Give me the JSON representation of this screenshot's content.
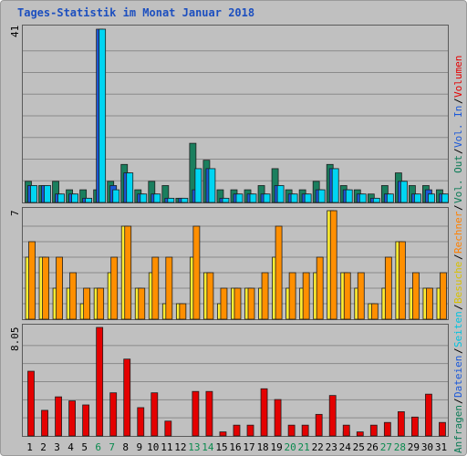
{
  "title": "Tages-Statistik im Monat Januar 2018",
  "colors": {
    "anfragen": "#1a7f5e",
    "dateien": "#1a58d8",
    "seiten": "#00d5f2",
    "besuche": "#ffed31",
    "rechner": "#ff8f00",
    "volumen": "#e40000",
    "weekend": "#0a8a4e",
    "weekday": "#000000",
    "title": "#1c4fbf"
  },
  "legend_right": [
    {
      "text": "Anfragen",
      "color": "#0a7a55"
    },
    {
      "text": "/",
      "color": "#000000"
    },
    {
      "text": "Dateien",
      "color": "#1a58d8"
    },
    {
      "text": "/",
      "color": "#000000"
    },
    {
      "text": "Seiten",
      "color": "#00c2e0"
    },
    {
      "text": "/",
      "color": "#000000"
    },
    {
      "text": "Besuche",
      "color": "#d9c000"
    },
    {
      "text": "/",
      "color": "#000000"
    },
    {
      "text": "Rechner",
      "color": "#ff8000"
    },
    {
      "text": "/",
      "color": "#000000"
    },
    {
      "text": "Vol. Out",
      "color": "#0a7a55"
    },
    {
      "text": "/",
      "color": "#000000"
    },
    {
      "text": "Vol. In",
      "color": "#1a58d8"
    },
    {
      "text": "/",
      "color": "#000000"
    },
    {
      "text": "Volumen",
      "color": "#e40000"
    }
  ],
  "chart_data": [
    {
      "type": "bar",
      "title": "Tages-Statistik im Monat Januar 2018",
      "categories": [
        "1",
        "2",
        "3",
        "4",
        "5",
        "6",
        "7",
        "8",
        "9",
        "10",
        "11",
        "12",
        "13",
        "14",
        "15",
        "16",
        "17",
        "18",
        "19",
        "20",
        "21",
        "22",
        "23",
        "24",
        "25",
        "26",
        "27",
        "28",
        "29",
        "30",
        "31"
      ],
      "weekend_days": [
        "6",
        "7",
        "13",
        "14",
        "20",
        "21",
        "27",
        "28"
      ],
      "ymax_label": "41",
      "ylim": [
        0,
        41
      ],
      "series": [
        {
          "name": "Anfragen",
          "values": [
            5,
            4,
            5,
            3,
            3,
            3,
            5,
            9,
            3,
            5,
            4,
            1,
            14,
            10,
            3,
            3,
            3,
            4,
            8,
            3,
            3,
            5,
            9,
            4,
            3,
            2,
            4,
            7,
            4,
            4,
            3
          ]
        },
        {
          "name": "Dateien",
          "values": [
            4,
            4,
            2,
            2,
            1,
            41,
            4,
            7,
            2,
            2,
            1,
            1,
            3,
            8,
            1,
            2,
            2,
            2,
            4,
            2,
            2,
            3,
            8,
            3,
            2,
            1,
            2,
            5,
            2,
            3,
            2
          ]
        },
        {
          "name": "Seiten",
          "values": [
            4,
            4,
            2,
            2,
            1,
            41,
            3,
            7,
            2,
            2,
            1,
            1,
            8,
            8,
            1,
            2,
            2,
            2,
            4,
            2,
            2,
            3,
            8,
            3,
            2,
            1,
            2,
            5,
            2,
            2,
            2
          ]
        }
      ]
    },
    {
      "type": "bar",
      "categories": [
        "1",
        "2",
        "3",
        "4",
        "5",
        "6",
        "7",
        "8",
        "9",
        "10",
        "11",
        "12",
        "13",
        "14",
        "15",
        "16",
        "17",
        "18",
        "19",
        "20",
        "21",
        "22",
        "23",
        "24",
        "25",
        "26",
        "27",
        "28",
        "29",
        "30",
        "31"
      ],
      "ymax_label": "7",
      "ylim": [
        0,
        7
      ],
      "series": [
        {
          "name": "Besuche",
          "values": [
            4,
            4,
            2,
            2,
            1,
            2,
            3,
            6,
            2,
            3,
            1,
            1,
            4,
            3,
            1,
            2,
            2,
            2,
            4,
            2,
            2,
            3,
            7,
            3,
            2,
            1,
            2,
            5,
            2,
            2,
            2
          ]
        },
        {
          "name": "Rechner",
          "values": [
            5,
            4,
            4,
            3,
            2,
            2,
            4,
            6,
            2,
            4,
            4,
            1,
            6,
            3,
            2,
            2,
            2,
            3,
            6,
            3,
            3,
            4,
            7,
            3,
            3,
            1,
            4,
            5,
            3,
            2,
            3
          ]
        }
      ]
    },
    {
      "type": "bar",
      "categories": [
        "1",
        "2",
        "3",
        "4",
        "5",
        "6",
        "7",
        "8",
        "9",
        "10",
        "11",
        "12",
        "13",
        "14",
        "15",
        "16",
        "17",
        "18",
        "19",
        "20",
        "21",
        "22",
        "23",
        "24",
        "25",
        "26",
        "27",
        "28",
        "29",
        "30",
        "31"
      ],
      "ymax_label": "8.05",
      "ylim": [
        0,
        8.05
      ],
      "series": [
        {
          "name": "Vol. Out",
          "values": [
            0,
            0,
            0,
            0,
            0,
            0,
            0,
            0,
            0,
            0,
            0,
            0,
            0,
            0,
            0,
            0,
            0,
            0,
            0,
            0,
            0,
            0,
            0,
            0,
            0,
            0,
            0,
            0,
            0,
            0,
            0
          ]
        },
        {
          "name": "Vol. In",
          "values": [
            0,
            0,
            0,
            0,
            0,
            0,
            0,
            0,
            0,
            0,
            0,
            0,
            0,
            0,
            0,
            0,
            0,
            0,
            0,
            0,
            0,
            0,
            0,
            0.3,
            0,
            0,
            0,
            0,
            0,
            0,
            0
          ]
        },
        {
          "name": "Volumen",
          "values": [
            4.8,
            1.9,
            2.9,
            2.6,
            2.3,
            8.05,
            3.2,
            5.7,
            2.1,
            3.2,
            1.1,
            0,
            3.3,
            3.3,
            0.3,
            0.8,
            0.8,
            3.5,
            2.7,
            0.8,
            0.8,
            1.6,
            3.0,
            0.8,
            0.3,
            0.8,
            1.0,
            1.8,
            1.4,
            3.1,
            1.0
          ]
        }
      ]
    }
  ]
}
